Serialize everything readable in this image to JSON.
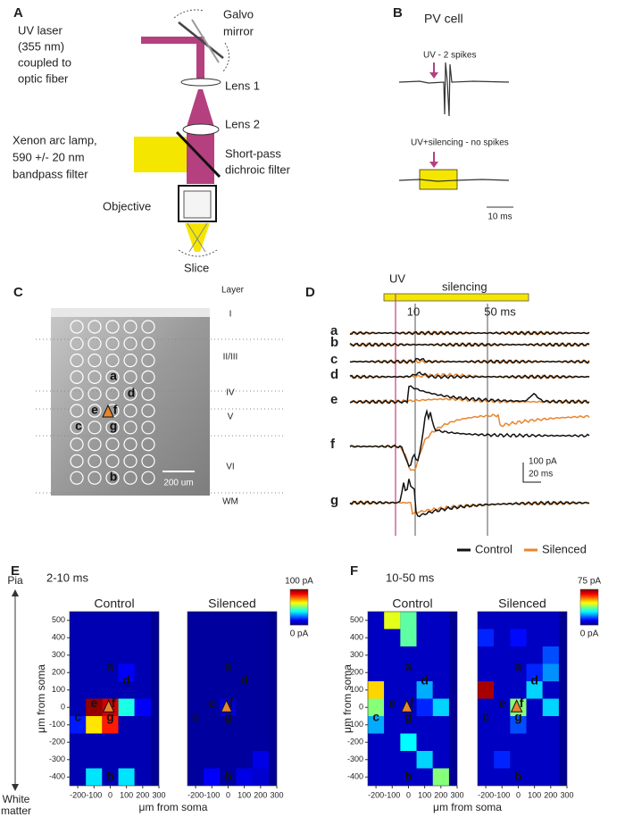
{
  "panel_a": {
    "label": "A",
    "uv_laser": [
      "UV laser",
      "(355 nm)",
      "coupled to",
      "optic fiber"
    ],
    "galvo": [
      "Galvo",
      "mirror"
    ],
    "lens1": "Lens 1",
    "lens2": "Lens 2",
    "lamp": [
      "Xenon arc lamp,",
      "590 +/- 20 nm",
      "bandpass filter"
    ],
    "dichroic": [
      "Short-pass",
      "dichroic filter"
    ],
    "objective": "Objective",
    "slice": "Slice"
  },
  "panel_b": {
    "label": "B",
    "title": "PV cell",
    "trace1": "UV - 2 spikes",
    "trace2": "UV+silencing - no spikes",
    "scale": "10 ms"
  },
  "panel_c": {
    "label": "C",
    "layer_heading": "Layer",
    "layers": [
      "I",
      "II/III",
      "IV",
      "V",
      "VI",
      "WM"
    ],
    "scale": "200 um",
    "sites": [
      "a",
      "b",
      "c",
      "d",
      "e",
      "f",
      "g"
    ]
  },
  "panel_d": {
    "label": "D",
    "uv": "UV",
    "silencing": "silencing",
    "t1": "10",
    "t2": "50 ms",
    "scale_y": "100 pA",
    "scale_x": "20 ms",
    "legend": [
      "Control",
      "Silenced"
    ],
    "colors": [
      "#111111",
      "#e8862e"
    ]
  },
  "panel_e": {
    "label": "E",
    "window": "2-10 ms",
    "pia": "Pia",
    "white_matter": [
      "White",
      "matter"
    ],
    "ylabel": "μm from soma",
    "xlabel": "μm from soma",
    "colorbar": {
      "max_label": "100 pA",
      "min_label": "0 pA",
      "range": [
        0,
        100
      ]
    },
    "xlim": [
      -250,
      300
    ],
    "ylim": [
      -450,
      550
    ],
    "xticks": [
      -200,
      -100,
      0,
      100,
      200,
      300
    ],
    "yticks": [
      500,
      400,
      300,
      200,
      100,
      0,
      -100,
      -200,
      -300,
      -400
    ],
    "maps": [
      {
        "title": "Control",
        "values": [
          [
            5,
            5,
            5,
            5,
            5
          ],
          [
            5,
            5,
            5,
            5,
            5
          ],
          [
            5,
            5,
            5,
            5,
            5
          ],
          [
            5,
            5,
            5,
            12,
            5
          ],
          [
            5,
            5,
            5,
            5,
            5
          ],
          [
            5,
            98,
            92,
            40,
            12
          ],
          [
            15,
            65,
            85,
            5,
            5
          ],
          [
            5,
            5,
            5,
            5,
            5
          ],
          [
            5,
            5,
            5,
            5,
            5
          ],
          [
            5,
            35,
            5,
            35,
            5
          ]
        ]
      },
      {
        "title": "Silenced",
        "values": [
          [
            3,
            3,
            3,
            3,
            3
          ],
          [
            3,
            3,
            3,
            3,
            3
          ],
          [
            3,
            3,
            3,
            3,
            3
          ],
          [
            3,
            3,
            3,
            3,
            3
          ],
          [
            3,
            3,
            3,
            3,
            3
          ],
          [
            3,
            3,
            8,
            3,
            3
          ],
          [
            3,
            3,
            3,
            3,
            3
          ],
          [
            3,
            3,
            3,
            3,
            3
          ],
          [
            3,
            3,
            3,
            3,
            10
          ],
          [
            3,
            12,
            3,
            10,
            8
          ]
        ]
      }
    ]
  },
  "panel_f": {
    "label": "F",
    "window": "10-50 ms",
    "ylabel": "μm from soma",
    "xlabel": "μm from soma",
    "colorbar": {
      "max_label": "75 pA",
      "min_label": "0 pA",
      "range": [
        0,
        75
      ]
    },
    "xlim": [
      -250,
      300
    ],
    "ylim": [
      -450,
      550
    ],
    "xticks": [
      -200,
      -100,
      0,
      100,
      200,
      300
    ],
    "yticks": [
      500,
      400,
      300,
      200,
      100,
      0,
      -100,
      -200,
      -300,
      -400
    ],
    "maps": [
      {
        "title": "Control",
        "values": [
          [
            5,
            45,
            35,
            5,
            5
          ],
          [
            5,
            5,
            35,
            5,
            5
          ],
          [
            5,
            5,
            5,
            5,
            5
          ],
          [
            5,
            5,
            5,
            5,
            5
          ],
          [
            50,
            5,
            5,
            22,
            5
          ],
          [
            38,
            5,
            5,
            12,
            25
          ],
          [
            22,
            5,
            5,
            5,
            5
          ],
          [
            5,
            5,
            28,
            5,
            5
          ],
          [
            5,
            5,
            5,
            25,
            5
          ],
          [
            5,
            5,
            5,
            5,
            38
          ]
        ]
      },
      {
        "title": "Silenced",
        "values": [
          [
            5,
            5,
            5,
            5,
            5
          ],
          [
            12,
            5,
            10,
            5,
            5
          ],
          [
            5,
            5,
            5,
            5,
            15
          ],
          [
            5,
            5,
            5,
            12,
            20
          ],
          [
            72,
            5,
            5,
            25,
            5
          ],
          [
            5,
            5,
            38,
            5,
            25
          ],
          [
            5,
            5,
            15,
            5,
            5
          ],
          [
            5,
            5,
            5,
            5,
            5
          ],
          [
            5,
            12,
            5,
            5,
            5
          ],
          [
            5,
            5,
            5,
            5,
            5
          ]
        ]
      }
    ]
  }
}
